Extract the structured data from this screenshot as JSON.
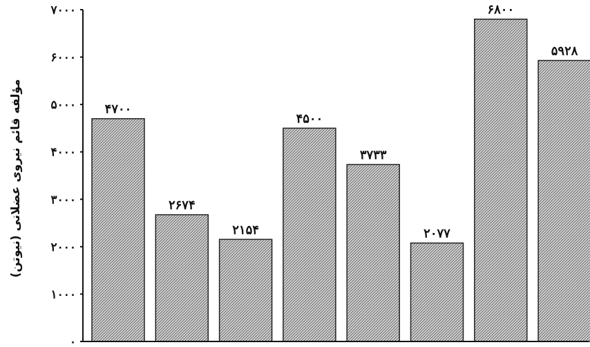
{
  "chart_data": {
    "type": "bar",
    "ylabel": "مؤلفه قائم نیروی عضلانی (نیوتن)",
    "ylim": [
      0,
      7000
    ],
    "yticks": [
      0,
      1000,
      2000,
      3000,
      4000,
      5000,
      6000,
      7000
    ],
    "ytick_labels": [
      "۰",
      "۱۰۰۰",
      "۲۰۰۰",
      "۳۰۰۰",
      "۴۰۰۰",
      "۵۰۰۰",
      "۶۰۰۰",
      "۷۰۰۰"
    ],
    "values": [
      4700,
      2674,
      2154,
      4500,
      3733,
      2077,
      6800,
      5928
    ],
    "data_labels": [
      "۴۷۰۰",
      "۲۶۷۴",
      "۲۱۵۴",
      "۴۵۰۰",
      "۳۷۳۳",
      "۲۰۷۷",
      "۶۸۰۰",
      "۵۹۲۸"
    ],
    "grid": false,
    "bar_fill": "#a9a9a9",
    "bar_stroke": "#222222"
  }
}
